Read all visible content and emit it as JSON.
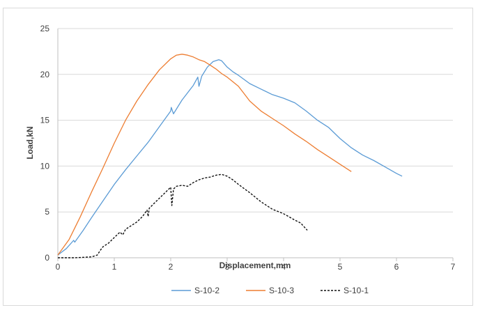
{
  "chart_data": {
    "type": "line",
    "title": "",
    "xlabel": "Displacement,mm",
    "ylabel": "Load,kN",
    "xlim": [
      0,
      7
    ],
    "ylim": [
      0,
      25
    ],
    "xticks": [
      0,
      1,
      2,
      3,
      4,
      5,
      6,
      7
    ],
    "yticks": [
      0,
      5,
      10,
      15,
      20,
      25
    ],
    "grid": "horizontal",
    "legend_position": "bottom",
    "series": [
      {
        "name": "S-10-2",
        "color": "#5b9bd5",
        "dash": "solid",
        "x": [
          0,
          0.15,
          0.28,
          0.3,
          0.45,
          0.6,
          0.8,
          1.0,
          1.2,
          1.4,
          1.6,
          1.8,
          2.0,
          2.01,
          2.05,
          2.2,
          2.4,
          2.48,
          2.5,
          2.55,
          2.65,
          2.75,
          2.85,
          2.9,
          3.0,
          3.1,
          3.2,
          3.4,
          3.6,
          3.8,
          4.0,
          4.2,
          4.4,
          4.6,
          4.8,
          5.0,
          5.2,
          5.4,
          5.6,
          5.8,
          6.0,
          6.1
        ],
        "y": [
          0.3,
          1.0,
          1.9,
          1.7,
          3.0,
          4.4,
          6.2,
          8.0,
          9.6,
          11.1,
          12.6,
          14.3,
          16.0,
          16.4,
          15.7,
          17.2,
          18.8,
          19.7,
          18.7,
          19.8,
          20.8,
          21.4,
          21.6,
          21.5,
          20.8,
          20.3,
          19.9,
          19.0,
          18.4,
          17.8,
          17.4,
          16.9,
          16.0,
          15.0,
          14.2,
          13.0,
          12.0,
          11.2,
          10.6,
          9.9,
          9.2,
          8.9
        ]
      },
      {
        "name": "S-10-3",
        "color": "#ed7d31",
        "dash": "solid",
        "x": [
          0,
          0.2,
          0.4,
          0.6,
          0.8,
          1.0,
          1.2,
          1.4,
          1.6,
          1.8,
          2.0,
          2.1,
          2.2,
          2.3,
          2.4,
          2.5,
          2.6,
          2.7,
          2.8,
          2.9,
          3.0,
          3.1,
          3.2,
          3.3,
          3.4,
          3.6,
          3.8,
          4.0,
          4.2,
          4.4,
          4.6,
          4.8,
          5.0,
          5.2
        ],
        "y": [
          0.3,
          2.0,
          4.5,
          7.2,
          9.8,
          12.5,
          15.0,
          17.1,
          18.9,
          20.5,
          21.7,
          22.1,
          22.2,
          22.1,
          21.9,
          21.6,
          21.4,
          21.0,
          20.6,
          20.1,
          19.7,
          19.2,
          18.7,
          17.9,
          17.1,
          16.0,
          15.2,
          14.4,
          13.5,
          12.7,
          11.8,
          11.0,
          10.2,
          9.4
        ]
      },
      {
        "name": "S-10-1",
        "color": "#111111",
        "dash": "dashed",
        "x": [
          0,
          0.3,
          0.6,
          0.7,
          0.75,
          0.8,
          0.9,
          1.0,
          1.1,
          1.15,
          1.2,
          1.3,
          1.4,
          1.5,
          1.58,
          1.6,
          1.62,
          1.7,
          1.8,
          1.9,
          2.0,
          2.02,
          2.05,
          2.1,
          2.2,
          2.3,
          2.4,
          2.5,
          2.6,
          2.7,
          2.8,
          2.9,
          3.0,
          3.1,
          3.2,
          3.4,
          3.6,
          3.8,
          4.0,
          4.2,
          4.3,
          4.42
        ],
        "y": [
          0,
          0,
          0.1,
          0.3,
          0.8,
          1.2,
          1.6,
          2.2,
          2.8,
          2.5,
          3.1,
          3.5,
          3.9,
          4.5,
          5.2,
          4.5,
          5.4,
          5.9,
          6.5,
          7.1,
          7.7,
          5.7,
          7.5,
          7.8,
          7.9,
          7.8,
          8.2,
          8.5,
          8.7,
          8.8,
          9.0,
          9.1,
          8.9,
          8.5,
          8.0,
          7.1,
          6.1,
          5.3,
          4.8,
          4.1,
          3.8,
          3.0
        ]
      }
    ]
  }
}
